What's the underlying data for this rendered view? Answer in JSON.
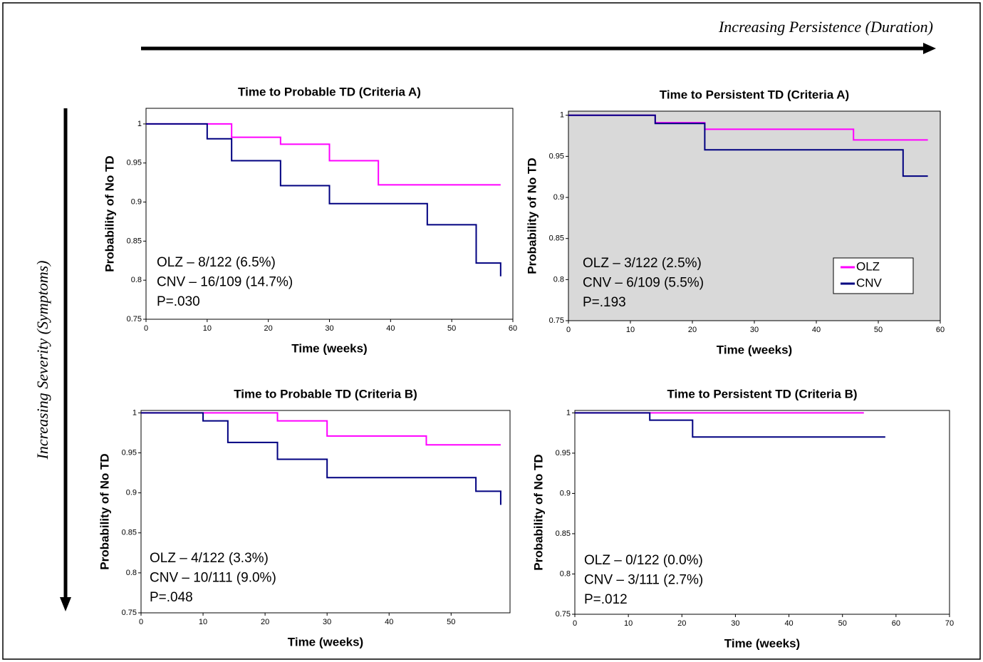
{
  "figure": {
    "top_label": "Increasing Persistence (Duration)",
    "side_label": "Increasing Severity (Symptoms)"
  },
  "chart_data": [
    {
      "type": "step",
      "title": "Time to Probable TD (Criteria A)",
      "x_label": "Time (weeks)",
      "y_label": "Probability of  No TD",
      "xlim": [
        0,
        60
      ],
      "xticks": [
        0,
        10,
        20,
        30,
        40,
        50,
        60
      ],
      "ylim": [
        0.75,
        1.02
      ],
      "yticks": [
        0.75,
        0.8,
        0.85,
        0.9,
        0.95,
        1
      ],
      "plot_background": "#ffffff",
      "annotations": [
        "OLZ – 8/122 (6.5%)",
        "CNV – 16/109 (14.7%)",
        "P=.030"
      ],
      "series": [
        {
          "name": "OLZ",
          "color": "#ff00ff",
          "x": [
            0,
            14,
            14,
            22,
            22,
            30,
            30,
            38,
            38,
            58
          ],
          "values": [
            1,
            1,
            0.983,
            0.983,
            0.974,
            0.974,
            0.953,
            0.953,
            0.922,
            0.922
          ]
        },
        {
          "name": "CNV",
          "color": "#000080",
          "x": [
            0,
            10,
            10,
            14,
            14,
            22,
            22,
            30,
            30,
            46,
            46,
            54,
            54,
            58,
            58
          ],
          "values": [
            1,
            1,
            0.981,
            0.981,
            0.953,
            0.953,
            0.921,
            0.921,
            0.898,
            0.898,
            0.871,
            0.871,
            0.822,
            0.822,
            0.805
          ]
        }
      ]
    },
    {
      "type": "step",
      "title": "Time to Persistent TD (Criteria A)",
      "x_label": "Time (weeks)",
      "y_label": "Probability of  No TD",
      "xlim": [
        0,
        60
      ],
      "xticks": [
        0,
        10,
        20,
        30,
        40,
        50,
        60
      ],
      "ylim": [
        0.75,
        1.005
      ],
      "yticks": [
        0.75,
        0.8,
        0.85,
        0.9,
        0.95,
        1
      ],
      "plot_background": "#d9d9d9",
      "legend": "lower-right",
      "annotations": [
        "OLZ – 3/122 (2.5%)",
        "CNV – 6/109 (5.5%)",
        "P=.193"
      ],
      "series": [
        {
          "name": "OLZ",
          "color": "#ff00ff",
          "x": [
            0,
            14,
            14,
            22,
            22,
            46,
            46,
            58
          ],
          "values": [
            1,
            1,
            0.991,
            0.991,
            0.983,
            0.983,
            0.97,
            0.97
          ]
        },
        {
          "name": "CNV",
          "color": "#000080",
          "x": [
            0,
            14,
            14,
            22,
            22,
            54,
            54,
            58
          ],
          "values": [
            1,
            1,
            0.99,
            0.99,
            0.958,
            0.958,
            0.926,
            0.926
          ]
        }
      ]
    },
    {
      "type": "step",
      "title": "Time to Probable TD (Criteria B)",
      "x_label": "Time (weeks)",
      "y_label": "Probability of  No TD",
      "xlim": [
        0,
        59.5
      ],
      "xticks": [
        0,
        10,
        20,
        30,
        40,
        50
      ],
      "ylim": [
        0.75,
        1.003
      ],
      "yticks": [
        0.75,
        0.8,
        0.85,
        0.9,
        0.95,
        1
      ],
      "plot_background": "#ffffff",
      "annotations": [
        "OLZ – 4/122 (3.3%)",
        "CNV – 10/111 (9.0%)",
        "P=.048"
      ],
      "series": [
        {
          "name": "OLZ",
          "color": "#ff00ff",
          "x": [
            0,
            22,
            22,
            30,
            30,
            46,
            46,
            58
          ],
          "values": [
            1,
            1,
            0.99,
            0.99,
            0.971,
            0.971,
            0.96,
            0.96
          ]
        },
        {
          "name": "CNV",
          "color": "#000080",
          "x": [
            0,
            10,
            10,
            14,
            14,
            22,
            22,
            30,
            30,
            54,
            54,
            58,
            58
          ],
          "values": [
            1,
            1,
            0.99,
            0.99,
            0.963,
            0.963,
            0.942,
            0.942,
            0.919,
            0.919,
            0.902,
            0.902,
            0.885
          ]
        }
      ]
    },
    {
      "type": "step",
      "title": "Time to Persistent TD (Criteria B)",
      "x_label": "Time (weeks)",
      "y_label": "Probability of  No TD",
      "xlim": [
        0,
        70
      ],
      "xticks": [
        0,
        10,
        20,
        30,
        40,
        50,
        60,
        70
      ],
      "ylim": [
        0.75,
        1.003
      ],
      "yticks": [
        0.75,
        0.8,
        0.85,
        0.9,
        0.95,
        1
      ],
      "plot_background": "#ffffff",
      "annotations": [
        "OLZ – 0/122 (0.0%)",
        "CNV – 3/111 (2.7%)",
        "P=.012"
      ],
      "series": [
        {
          "name": "OLZ",
          "color": "#ff00ff",
          "x": [
            0,
            54
          ],
          "values": [
            1,
            1
          ]
        },
        {
          "name": "CNV",
          "color": "#000080",
          "x": [
            0,
            14,
            14,
            22,
            22,
            58
          ],
          "values": [
            1,
            1,
            0.991,
            0.991,
            0.97,
            0.97
          ]
        }
      ]
    }
  ]
}
